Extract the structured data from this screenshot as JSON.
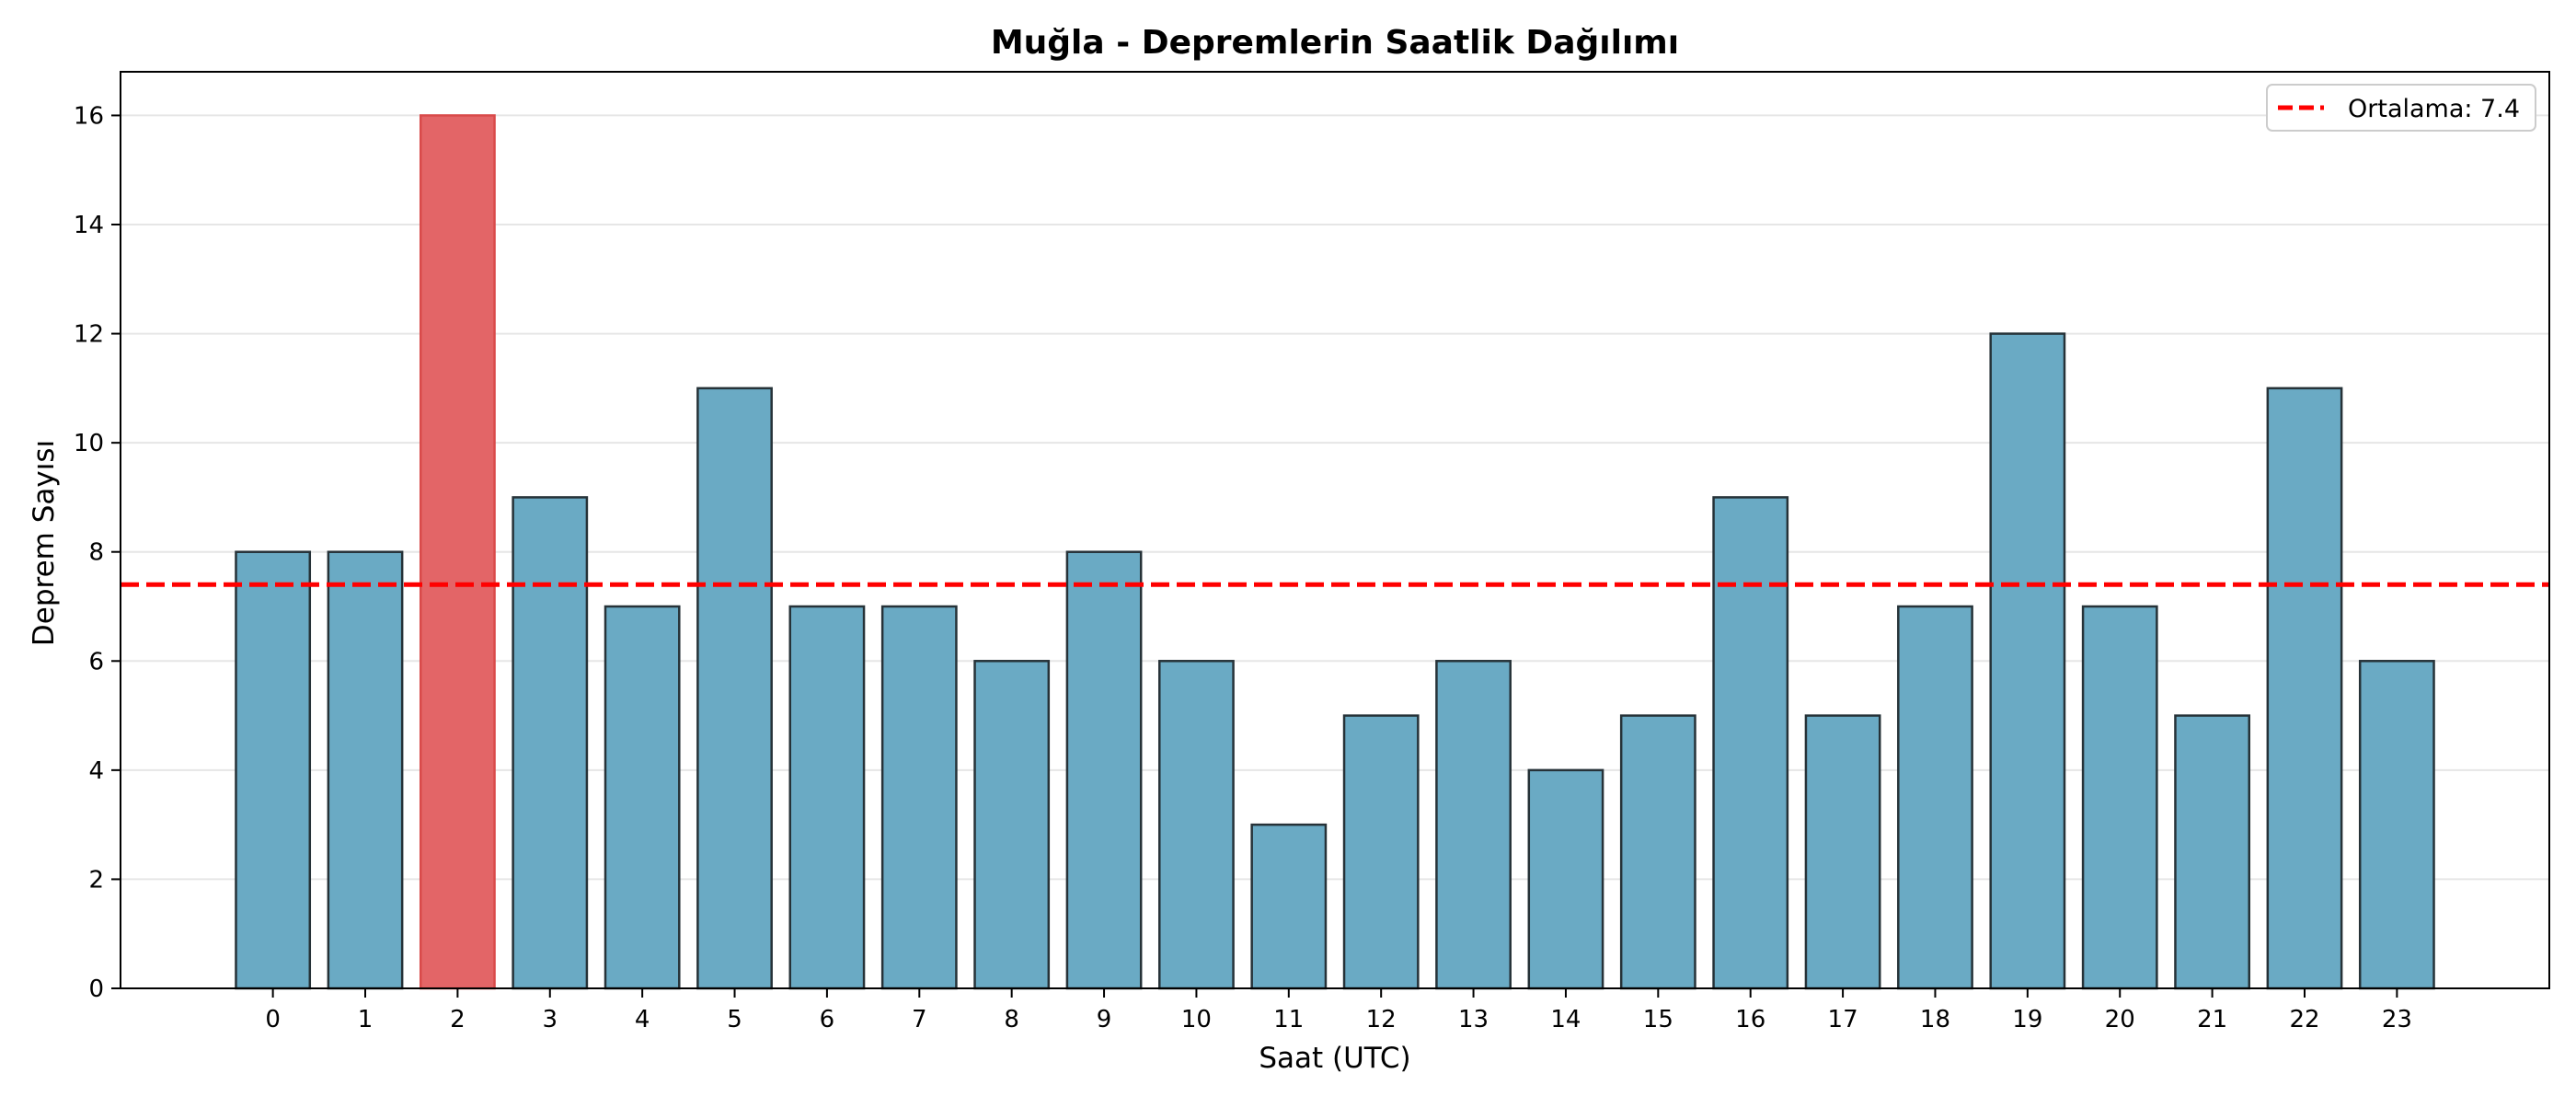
{
  "chart_data": {
    "type": "bar",
    "title": "Muğla - Depremlerin Saatlik Dağılımı",
    "xlabel": "Saat (UTC)",
    "ylabel": "Deprem Sayısı",
    "categories": [
      "0",
      "1",
      "2",
      "3",
      "4",
      "5",
      "6",
      "7",
      "8",
      "9",
      "10",
      "11",
      "12",
      "13",
      "14",
      "15",
      "16",
      "17",
      "18",
      "19",
      "20",
      "21",
      "22",
      "23"
    ],
    "values": [
      8,
      8,
      16,
      9,
      7,
      11,
      7,
      7,
      6,
      8,
      6,
      3,
      5,
      6,
      4,
      5,
      9,
      5,
      7,
      12,
      7,
      5,
      11,
      6
    ],
    "highlight_index": 2,
    "ylim": [
      0,
      16.8
    ],
    "xlim": [
      -1.65,
      24.65
    ],
    "yticks": [
      0,
      2,
      4,
      6,
      8,
      10,
      12,
      14,
      16
    ],
    "grid": "horizontal",
    "mean_line": {
      "value": 7.4,
      "label": "Ortalama: 7.4",
      "color": "#ff0000",
      "style": "dashed"
    },
    "legend": {
      "position": "top-right",
      "entries": [
        "Ortalama: 7.4"
      ]
    },
    "colors": {
      "bar": "#6aaac4",
      "bar_edge": "#263238",
      "highlight": "#e36567",
      "highlight_edge": "#d94a4a",
      "grid": "#e6e6e6",
      "axis": "#000000",
      "text": "#000000"
    }
  }
}
